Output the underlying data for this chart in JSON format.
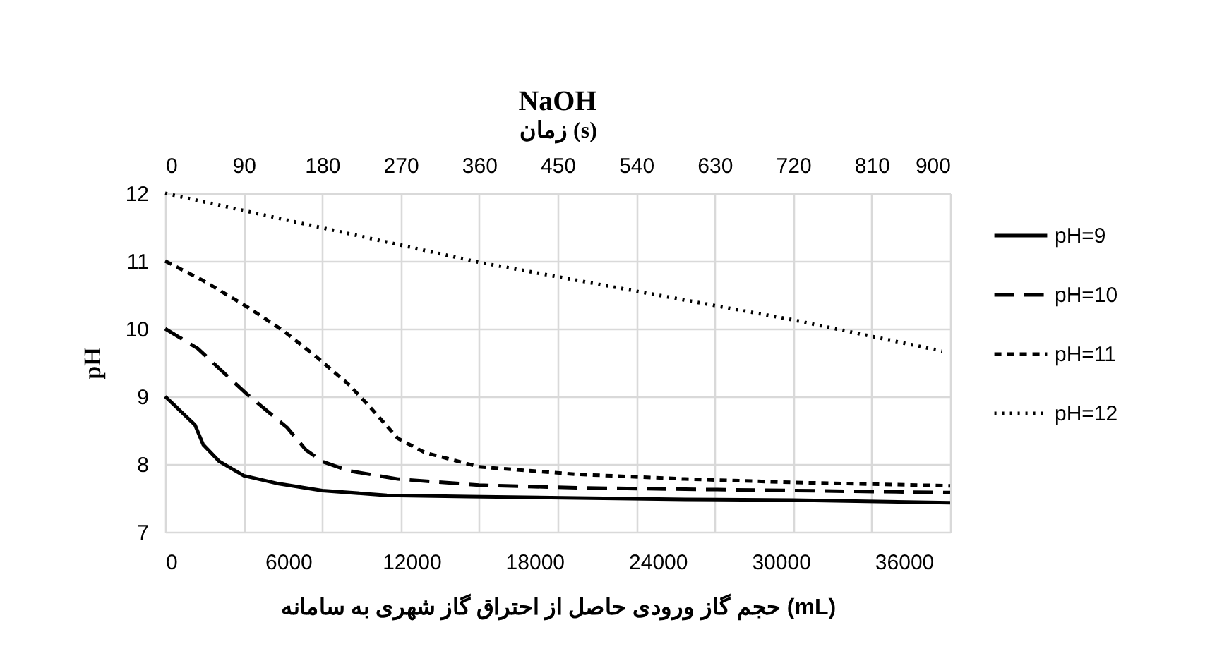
{
  "chart_data": {
    "type": "line",
    "title": "NaOH",
    "x2label": "زمان (s)",
    "xlabel": "حجم گاز ورودی حاصل از احتراق گاز شهری به سامانه (mL)",
    "ylabel": "pH",
    "xlim": [
      0,
      38250
    ],
    "xticks": [
      0,
      6000,
      12000,
      18000,
      24000,
      30000,
      36000
    ],
    "x2lim": [
      0,
      900
    ],
    "x2ticks": [
      0,
      90,
      180,
      270,
      360,
      450,
      540,
      630,
      720,
      810,
      900
    ],
    "ylim": [
      7,
      12
    ],
    "yticks": [
      7,
      8,
      9,
      10,
      11,
      12
    ],
    "grid": true,
    "legend": "right",
    "marker": "none",
    "series": [
      {
        "name": "pH=9",
        "color": "#000000",
        "line_style": "solid",
        "x": [
          0,
          1450,
          1850,
          2640,
          3830,
          5540,
          7650,
          10800,
          14770,
          20050,
          25330,
          30600,
          38250
        ],
        "values": [
          9,
          8.58,
          8.29,
          8.04,
          7.83,
          7.71,
          7.61,
          7.54,
          7.52,
          7.5,
          7.48,
          7.47,
          7.43
        ]
      },
      {
        "name": "pH=10",
        "color": "#000000",
        "line_style": "dashed",
        "x": [
          0,
          1580,
          3960,
          5940,
          6860,
          7650,
          8970,
          11340,
          15300,
          20050,
          25330,
          30600,
          38250
        ],
        "values": [
          10,
          9.71,
          9.04,
          8.54,
          8.21,
          8.04,
          7.9,
          7.78,
          7.69,
          7.65,
          7.63,
          7.61,
          7.58
        ]
      },
      {
        "name": "pH=11",
        "color": "#000000",
        "line_style": "dashed",
        "x": [
          0,
          1850,
          3960,
          5800,
          7390,
          8970,
          10020,
          11340,
          12660,
          15300,
          20050,
          25330,
          30600,
          38250
        ],
        "values": [
          11,
          10.71,
          10.33,
          9.96,
          9.58,
          9.17,
          8.83,
          8.38,
          8.17,
          7.96,
          7.85,
          7.78,
          7.73,
          7.68
        ]
      },
      {
        "name": "pH=12",
        "color": "#000000",
        "line_style": "dotted",
        "x": [
          0,
          15300,
          30600,
          37850
        ],
        "values": [
          12,
          10.98,
          10.13,
          9.67
        ]
      }
    ]
  }
}
